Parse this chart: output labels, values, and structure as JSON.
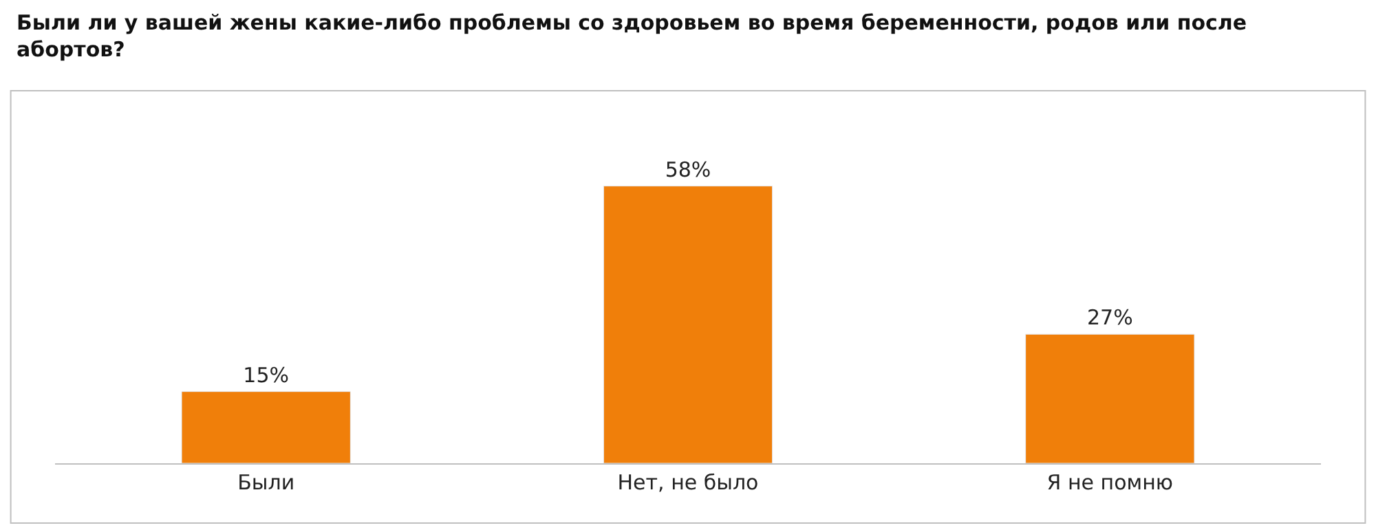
{
  "chart_data": {
    "type": "bar",
    "title": "Были ли у вашей жены какие-либо проблемы со здоровьем во время беременности, родов или после абортов?",
    "categories": [
      "Были",
      "Нет, не было",
      "Я не помню"
    ],
    "values": [
      15,
      58,
      27
    ],
    "value_labels": [
      "15%",
      "58%",
      "27%"
    ],
    "color": "#f07f0a",
    "legend": false
  }
}
